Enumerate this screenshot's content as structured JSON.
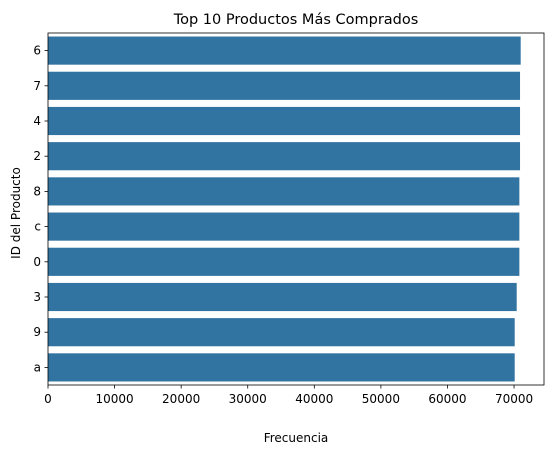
{
  "chart_data": {
    "type": "bar",
    "orientation": "horizontal",
    "title": "Top 10 Productos Más Comprados",
    "xlabel": "Frecuencia",
    "ylabel": "ID del Producto",
    "categories": [
      "6",
      "7",
      "4",
      "2",
      "8",
      "c",
      "0",
      "3",
      "9",
      "a"
    ],
    "values": [
      71000,
      70900,
      70900,
      70900,
      70800,
      70800,
      70800,
      70400,
      70100,
      70100
    ],
    "xlim": [
      0,
      74500
    ],
    "xticks": [
      0,
      10000,
      20000,
      30000,
      40000,
      50000,
      60000,
      70000
    ],
    "xtick_labels": [
      "0",
      "10000",
      "20000",
      "30000",
      "40000",
      "50000",
      "60000",
      "70000"
    ],
    "grid": false,
    "bar_color": "#3274a1"
  }
}
